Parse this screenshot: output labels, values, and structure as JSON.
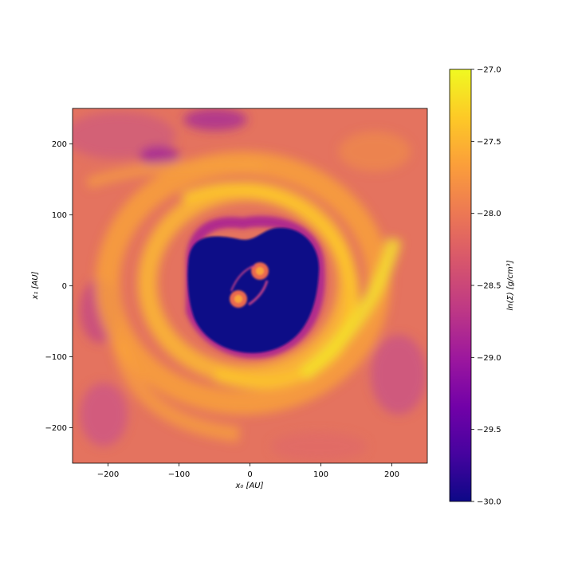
{
  "chart_data": {
    "type": "heatmap",
    "title": "",
    "xlabel": "x₀ [AU]",
    "ylabel": "x₁ [AU]",
    "xlim": [
      -250,
      250
    ],
    "ylim": [
      -250,
      250
    ],
    "xticks": [
      -200,
      -100,
      0,
      100,
      200
    ],
    "yticks": [
      -200,
      -100,
      0,
      100,
      200
    ],
    "xtick_labels": [
      "−200",
      "−100",
      "0",
      "100",
      "200"
    ],
    "ytick_labels": [
      "−200",
      "−100",
      "0",
      "100",
      "200"
    ],
    "colormap": "plasma",
    "colorbar": {
      "label": "ln(Σ) [g/cm³]",
      "range": [
        -30.0,
        -27.0
      ],
      "ticks": [
        -30.0,
        -29.5,
        -29.0,
        -28.5,
        -28.0,
        -27.5,
        -27.0
      ],
      "tick_labels": [
        "−30.0",
        "−29.5",
        "−29.0",
        "−28.5",
        "−28.0",
        "−27.5",
        "−27.0"
      ]
    },
    "features": {
      "cavity": {
        "center": [
          0,
          0
        ],
        "radius_au": 90,
        "value": -30.0
      },
      "sinks": [
        {
          "x": 14,
          "y": 19
        },
        {
          "x": -16,
          "y": -20
        }
      ],
      "spiral_arms": 2,
      "background_level": -28.0
    },
    "grid": false
  },
  "colors": {
    "plasma_stops": [
      "#0d0887",
      "#46039f",
      "#7201a8",
      "#9c179e",
      "#bd3786",
      "#d8576b",
      "#ed7953",
      "#fb9f3a",
      "#fdca26",
      "#f0f921"
    ]
  }
}
